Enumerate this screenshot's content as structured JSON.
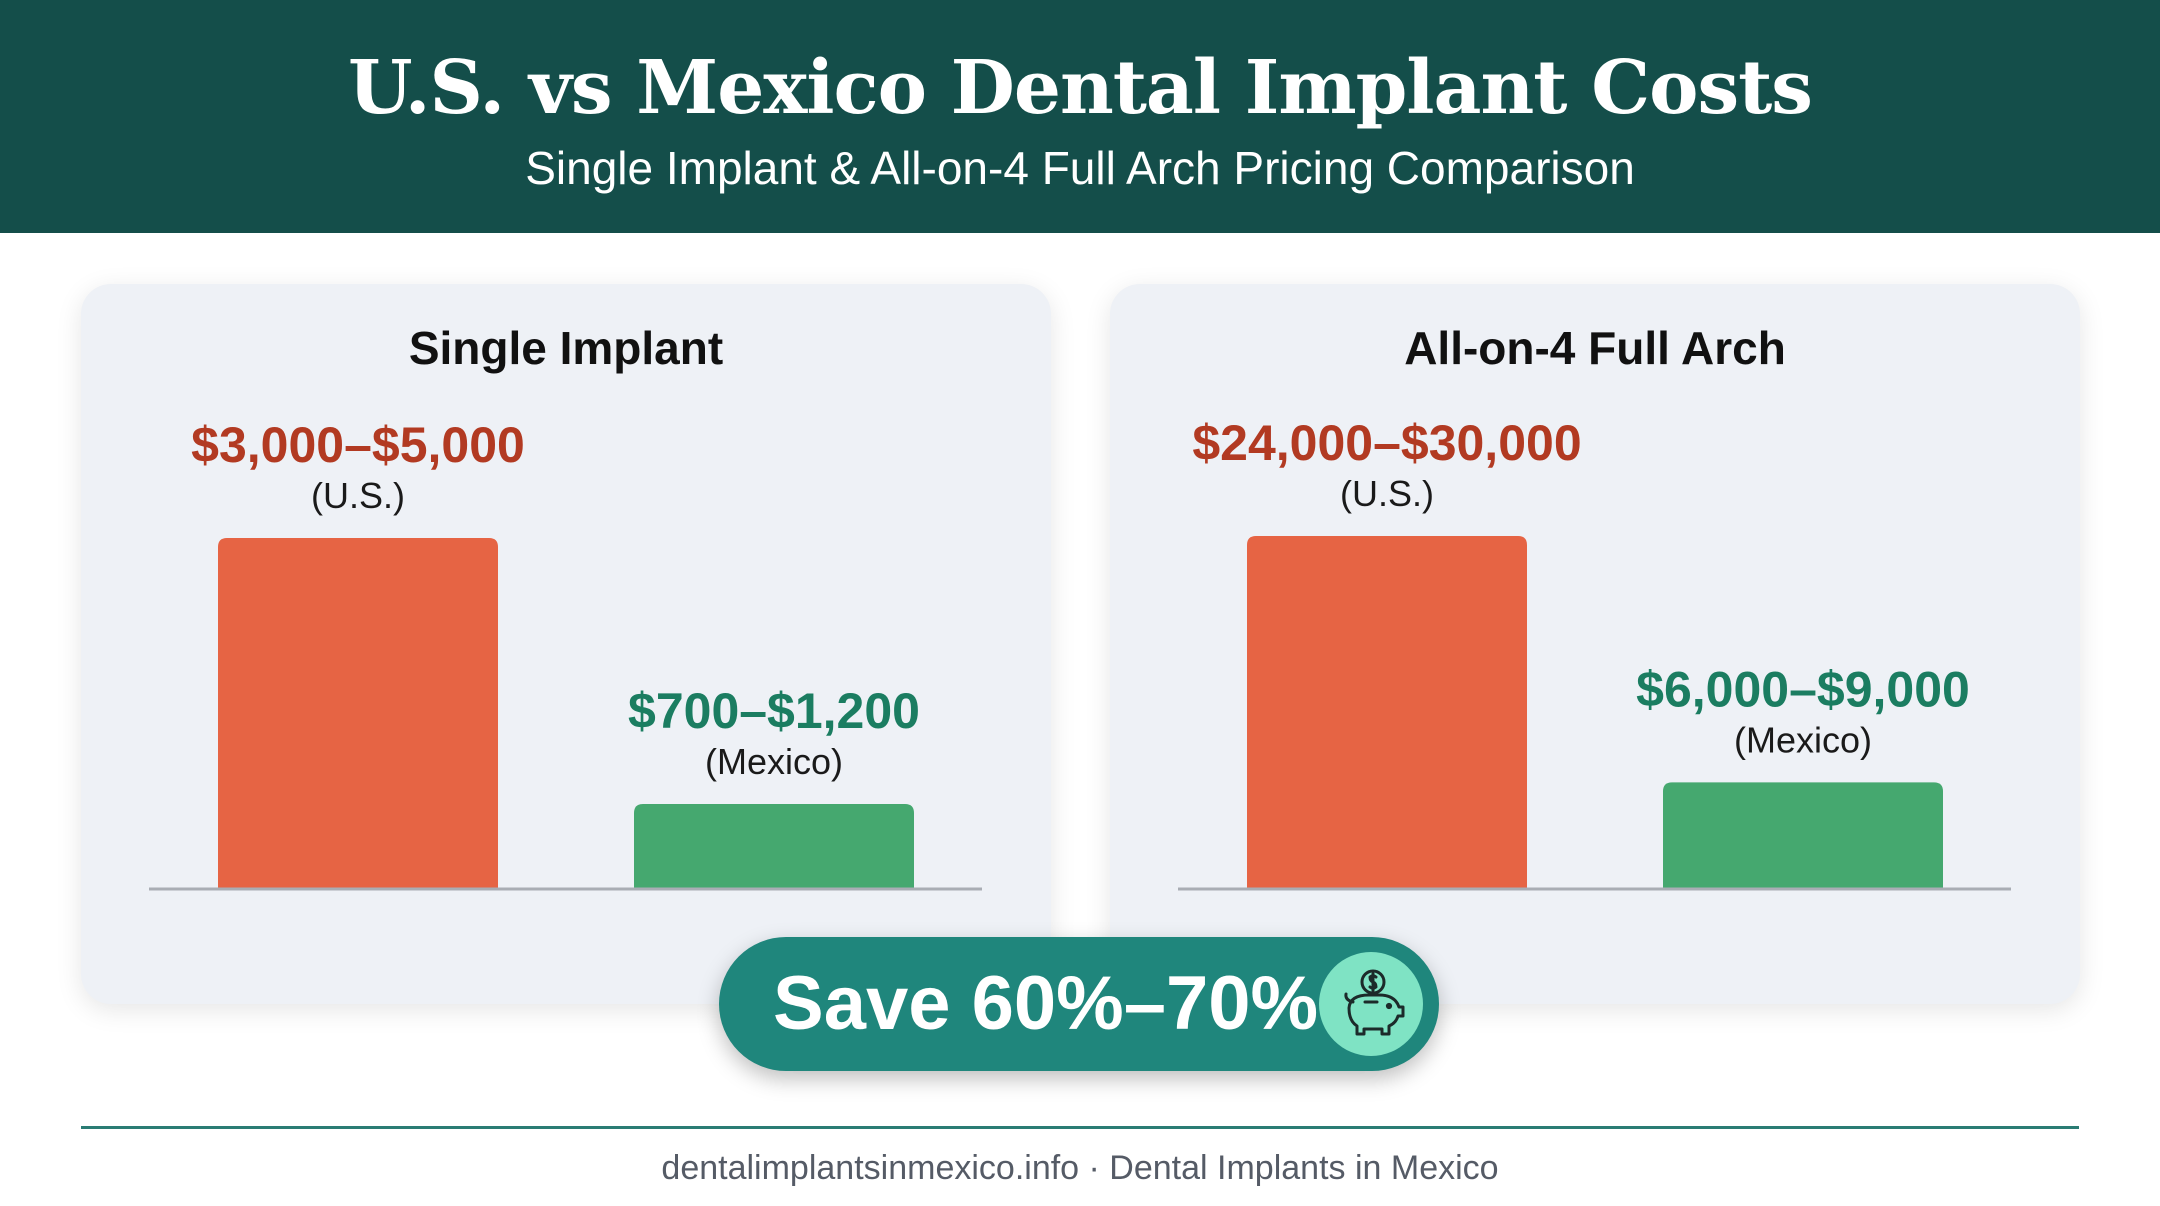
{
  "colors": {
    "header_bg": "#144e4a",
    "us_bar": "#e66444",
    "us_text": "#b23a22",
    "mexico_bar": "#45a86f",
    "mexico_text": "#1b7d61",
    "save_pill": "#1f867c",
    "piggy_badge": "#7fe3c4"
  },
  "header": {
    "title": "U.S. vs Mexico Dental Implant Costs",
    "subtitle": "Single Implant & All-on-4 Full Arch Pricing Comparison"
  },
  "chart_data": [
    {
      "type": "bar",
      "title": "Single Implant",
      "categories": [
        "U.S.",
        "Mexico"
      ],
      "values": [
        5000,
        1200
      ],
      "ranges": [
        [
          3000,
          5000
        ],
        [
          700,
          1200
        ]
      ],
      "value_labels": [
        "$3,000–$5,000",
        "$700–$1,200"
      ],
      "category_labels": [
        "(U.S.)",
        "(Mexico)"
      ],
      "ylim": [
        0,
        5000
      ],
      "grid": false,
      "xlabel": "",
      "ylabel": ""
    },
    {
      "type": "bar",
      "title": "All-on-4 Full Arch",
      "categories": [
        "U.S.",
        "Mexico"
      ],
      "values": [
        30000,
        9000
      ],
      "ranges": [
        [
          24000,
          30000
        ],
        [
          6000,
          9000
        ]
      ],
      "value_labels": [
        "$24,000–$30,000",
        "$6,000–$9,000"
      ],
      "category_labels": [
        "(U.S.)",
        "(Mexico)"
      ],
      "ylim": [
        0,
        30000
      ],
      "grid": false,
      "xlabel": "",
      "ylabel": ""
    }
  ],
  "savings": {
    "label": "Save 60%–70%",
    "icon": "piggy-bank-icon"
  },
  "footer": {
    "text": "dentalimplantsinmexico.info · Dental Implants in Mexico"
  }
}
